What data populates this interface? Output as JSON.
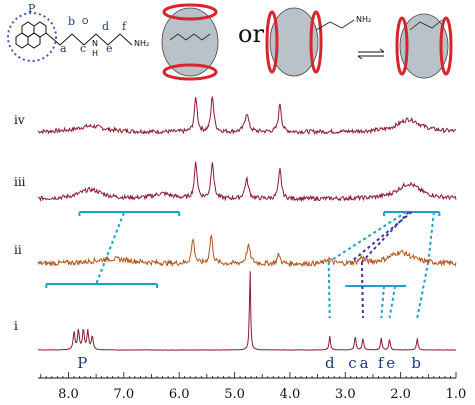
{
  "chart_data": {
    "type": "line",
    "xlabel": "",
    "ylabel": "",
    "x_ticks": [
      "8.0",
      "7.0",
      "6.0",
      "5.0",
      "4.0",
      "3.0",
      "2.0",
      "1.0"
    ],
    "x_tick_values": [
      8.0,
      7.0,
      6.0,
      5.0,
      4.0,
      3.0,
      2.0,
      1.0
    ],
    "xlim": [
      8.55,
      1.0
    ],
    "x_reversed": true,
    "grid": false,
    "traces": [
      {
        "label": "iv",
        "color": "#8c1a2e",
        "noise": 0.05,
        "peaks": [
          {
            "x": 5.7,
            "h": 0.82,
            "w": 0.03
          },
          {
            "x": 5.4,
            "h": 0.86,
            "w": 0.03
          },
          {
            "x": 4.78,
            "h": 0.45,
            "w": 0.04
          },
          {
            "x": 4.18,
            "h": 0.68,
            "w": 0.03
          },
          {
            "x": 7.6,
            "h": 0.14,
            "w": 0.3
          },
          {
            "x": 1.85,
            "h": 0.3,
            "w": 0.25
          }
        ]
      },
      {
        "label": "iii",
        "color": "#8c1a2e",
        "noise": 0.05,
        "peaks": [
          {
            "x": 5.7,
            "h": 0.85,
            "w": 0.03
          },
          {
            "x": 5.4,
            "h": 0.9,
            "w": 0.03
          },
          {
            "x": 4.78,
            "h": 0.46,
            "w": 0.04
          },
          {
            "x": 4.18,
            "h": 0.7,
            "w": 0.03
          },
          {
            "x": 7.6,
            "h": 0.22,
            "w": 0.25
          },
          {
            "x": 6.3,
            "h": 0.12,
            "w": 0.2
          },
          {
            "x": 1.85,
            "h": 0.36,
            "w": 0.25
          }
        ]
      },
      {
        "label": "ii",
        "color": "#b5531a",
        "noise": 0.06,
        "peaks": [
          {
            "x": 5.75,
            "h": 0.6,
            "w": 0.03
          },
          {
            "x": 5.42,
            "h": 0.68,
            "w": 0.03
          },
          {
            "x": 4.75,
            "h": 0.42,
            "w": 0.04
          },
          {
            "x": 4.2,
            "h": 0.22,
            "w": 0.03
          },
          {
            "x": 7.2,
            "h": 0.12,
            "w": 0.45
          },
          {
            "x": 3.3,
            "h": 0.12,
            "w": 0.05
          },
          {
            "x": 2.7,
            "h": 0.14,
            "w": 0.05
          },
          {
            "x": 2.0,
            "h": 0.28,
            "w": 0.25
          }
        ]
      },
      {
        "label": "i",
        "color": "#8c1a2e",
        "noise": 0.01,
        "peaks": [
          {
            "x": 7.9,
            "h": 0.9,
            "w": 0.018
          },
          {
            "x": 7.82,
            "h": 1.0,
            "w": 0.018
          },
          {
            "x": 7.73,
            "h": 1.05,
            "w": 0.018
          },
          {
            "x": 7.65,
            "h": 0.95,
            "w": 0.018
          },
          {
            "x": 7.57,
            "h": 0.7,
            "w": 0.018
          },
          {
            "x": 4.72,
            "h": 4.2,
            "w": 0.012
          },
          {
            "x": 3.28,
            "h": 0.7,
            "w": 0.015
          },
          {
            "x": 2.82,
            "h": 0.7,
            "w": 0.015
          },
          {
            "x": 2.68,
            "h": 0.6,
            "w": 0.015
          },
          {
            "x": 2.35,
            "h": 0.6,
            "w": 0.015
          },
          {
            "x": 2.2,
            "h": 0.55,
            "w": 0.015
          },
          {
            "x": 1.7,
            "h": 0.6,
            "w": 0.015
          }
        ]
      }
    ],
    "peak_labels": [
      {
        "text": "P",
        "x": 7.75
      },
      {
        "text": "d",
        "x": 3.28
      },
      {
        "text": "c",
        "x": 2.87
      },
      {
        "text": "a",
        "x": 2.66
      },
      {
        "text": "f",
        "x": 2.36
      },
      {
        "text": "e",
        "x": 2.18
      },
      {
        "text": "b",
        "x": 1.72
      }
    ]
  },
  "header": {
    "or_text": "or",
    "pyrene_letter": "P",
    "chain_letters": [
      "a",
      "b",
      "c",
      "d",
      "e",
      "f"
    ],
    "atom_o": "O",
    "atom_n": "N",
    "atom_h": "H",
    "amine": "NH₂",
    "amine_small": "NH₂"
  },
  "colors": {
    "trace_red": "#8c1a2e",
    "trace_orange": "#b5531a",
    "connector_cyan": "#1aa3c8",
    "connector_blue": "#3a3aa8",
    "label_blue": "#1a3a7a",
    "ring_red": "#d8252b"
  }
}
